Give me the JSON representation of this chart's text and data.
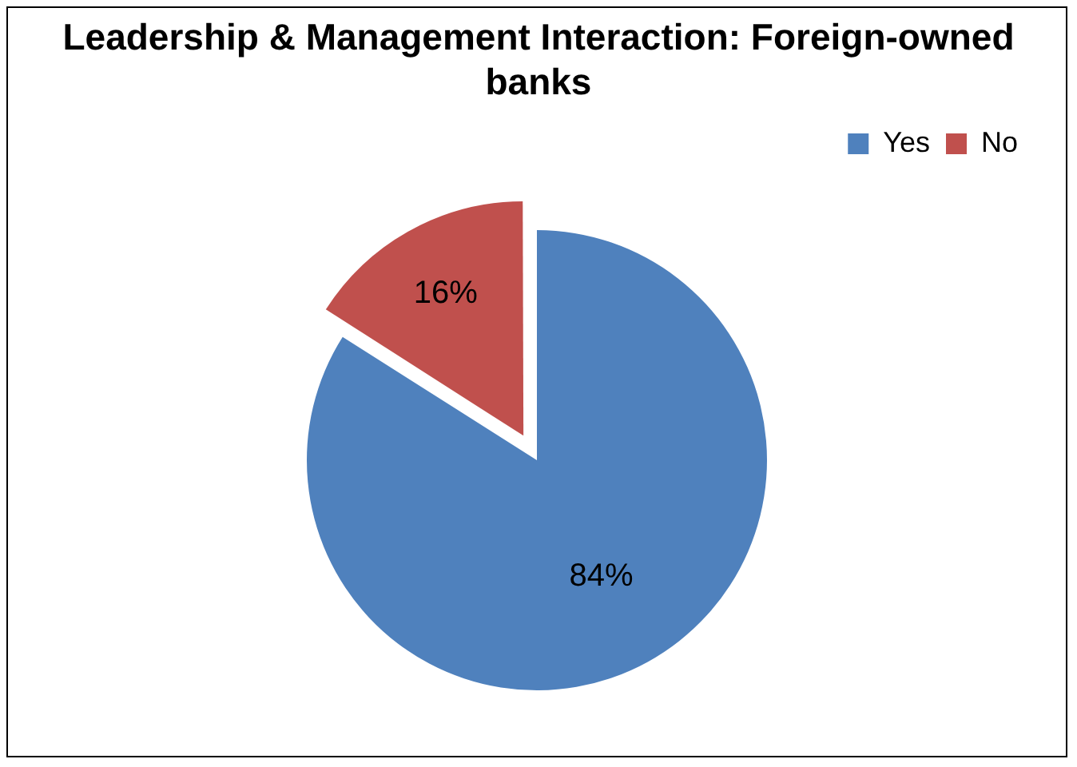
{
  "chart_data": {
    "type": "pie",
    "title": "Leadership & Management Interaction: Foreign-owned banks",
    "categories": [
      "Yes",
      "No"
    ],
    "values": [
      84,
      16
    ],
    "colors": [
      "#4f81bd",
      "#c0504d"
    ],
    "value_labels": [
      "84%",
      "16%"
    ],
    "legend": "top right"
  }
}
